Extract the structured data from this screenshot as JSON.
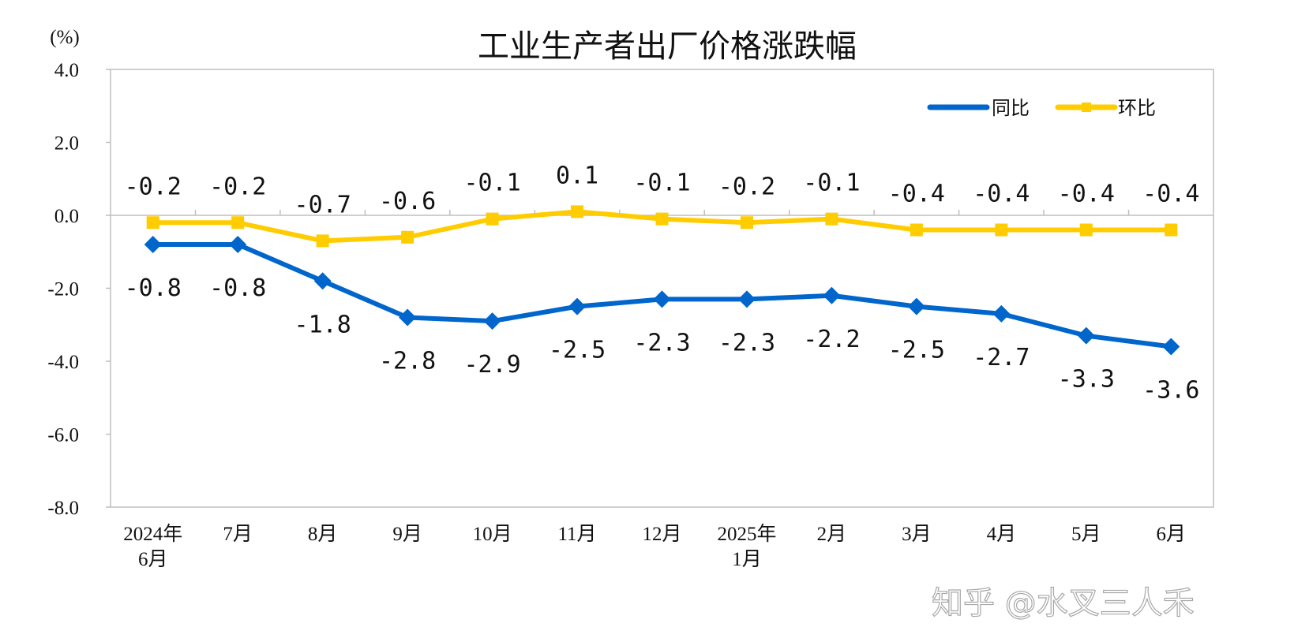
{
  "chart_data": {
    "type": "line",
    "title": "工业生产者出厂价格涨跌幅",
    "ylabel": "(%)",
    "xlabel": "",
    "ylim": [
      -8.0,
      4.0
    ],
    "yticks": [
      "4.0",
      "2.0",
      "0.0",
      "-2.0",
      "-4.0",
      "-6.0",
      "-8.0"
    ],
    "categories": [
      "2024年\n6月",
      "7月",
      "8月",
      "9月",
      "10月",
      "11月",
      "12月",
      "2025年\n1月",
      "2月",
      "3月",
      "4月",
      "5月",
      "6月"
    ],
    "series": [
      {
        "name": "同比",
        "color": "#0066CC",
        "marker": "diamond",
        "values": [
          -0.8,
          -0.8,
          -1.8,
          -2.8,
          -2.9,
          -2.5,
          -2.3,
          -2.3,
          -2.2,
          -2.5,
          -2.7,
          -3.3,
          -3.6
        ],
        "labels": [
          "-0.8",
          "-0.8",
          "-1.8",
          "-2.8",
          "-2.9",
          "-2.5",
          "-2.3",
          "-2.3",
          "-2.2",
          "-2.5",
          "-2.7",
          "-3.3",
          "-3.6"
        ]
      },
      {
        "name": "环比",
        "color": "#FFCC00",
        "marker": "square",
        "values": [
          -0.2,
          -0.2,
          -0.7,
          -0.6,
          -0.1,
          0.1,
          -0.1,
          -0.2,
          -0.1,
          -0.4,
          -0.4,
          -0.4,
          -0.4
        ],
        "labels": [
          "-0.2",
          "-0.2",
          "-0.7",
          "-0.6",
          "-0.1",
          "0.1",
          "-0.1",
          "-0.2",
          "-0.1",
          "-0.4",
          "-0.4",
          "-0.4",
          "-0.4"
        ]
      }
    ],
    "grid": "zero-line only",
    "legend": "top-right"
  },
  "watermark": "知乎 @水叉三人禾"
}
